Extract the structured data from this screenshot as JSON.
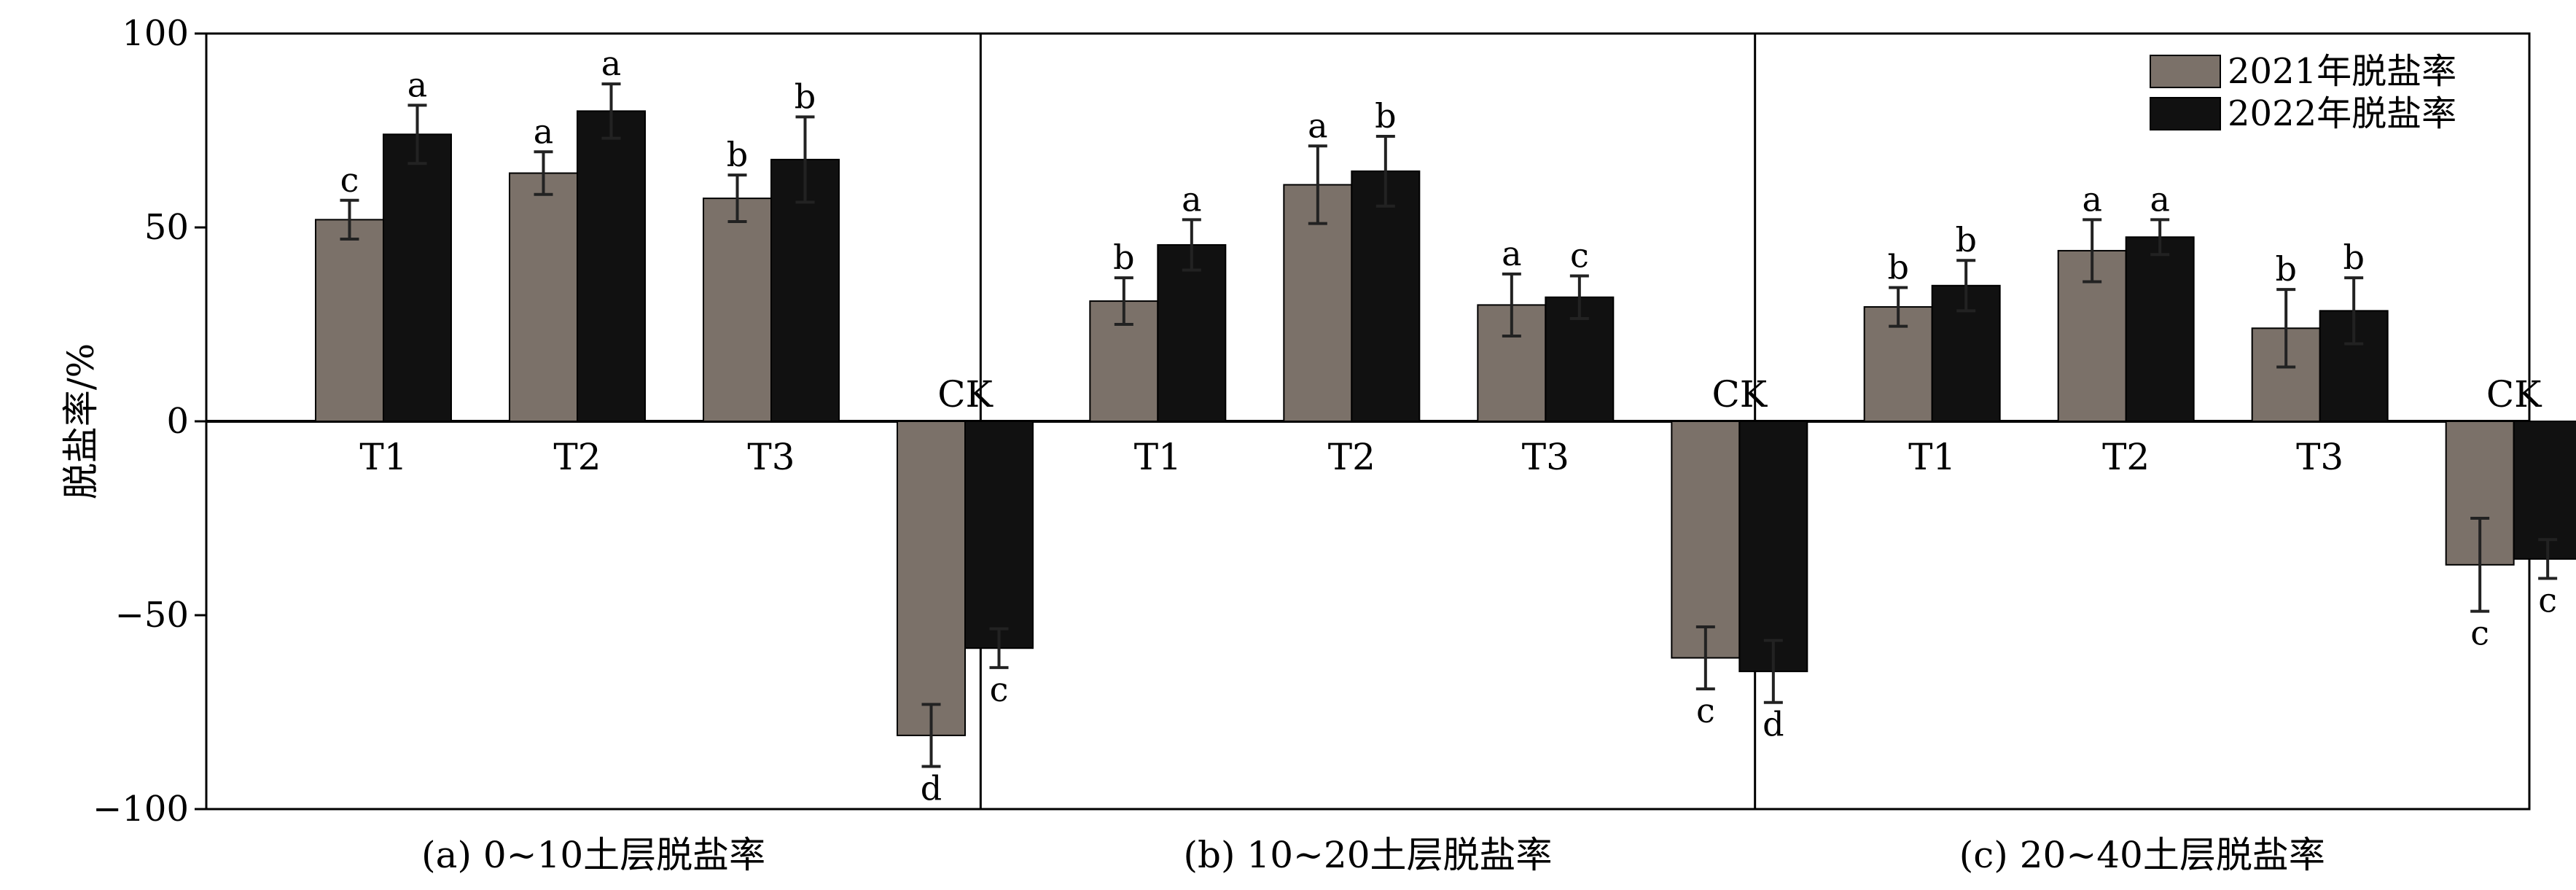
{
  "chart_data": {
    "type": "bar",
    "ylabel": "脱盐率/%",
    "ylim": [
      -100,
      100
    ],
    "yticks": [
      100,
      50,
      0,
      -50,
      -100
    ],
    "ytick_labels": [
      "100",
      "50",
      "0",
      "−50",
      "−100"
    ],
    "legend": {
      "position": "top-right",
      "entries": [
        {
          "name": "2021年脱盐率",
          "color": "#7b7169"
        },
        {
          "name": "2022年脱盐率",
          "color": "#111111"
        }
      ]
    },
    "panels": [
      {
        "title": "(a) 0~10土层脱盐率",
        "categories": [
          "T1",
          "T2",
          "T3",
          "CK"
        ],
        "series": [
          {
            "name": "2021年脱盐率",
            "values": [
              52,
              64,
              57.5,
              -81
            ],
            "errors": [
              5,
              5.5,
              6,
              8
            ],
            "labels": [
              "c",
              "a",
              "b",
              "d"
            ]
          },
          {
            "name": "2022年脱盐率",
            "values": [
              74,
              80,
              67.5,
              -58.5
            ],
            "errors": [
              7.5,
              7,
              11,
              5
            ],
            "labels": [
              "a",
              "a",
              "b",
              "c"
            ]
          }
        ]
      },
      {
        "title": "(b) 10~20土层脱盐率",
        "categories": [
          "T1",
          "T2",
          "T3",
          "CK"
        ],
        "series": [
          {
            "name": "2021年脱盐率",
            "values": [
              31,
              61,
              30,
              -61
            ],
            "errors": [
              6,
              10,
              8,
              8
            ],
            "labels": [
              "b",
              "a",
              "a",
              "c"
            ]
          },
          {
            "name": "2022年脱盐率",
            "values": [
              45.5,
              64.5,
              32,
              -64.5
            ],
            "errors": [
              6.5,
              9,
              5.5,
              8
            ],
            "labels": [
              "a",
              "b",
              "c",
              "d"
            ]
          }
        ]
      },
      {
        "title": "(c) 20~40土层脱盐率",
        "categories": [
          "T1",
          "T2",
          "T3",
          "CK"
        ],
        "series": [
          {
            "name": "2021年脱盐率",
            "values": [
              29.5,
              44,
              24,
              -37
            ],
            "errors": [
              5,
              8,
              10,
              12
            ],
            "labels": [
              "b",
              "a",
              "b",
              "c"
            ]
          },
          {
            "name": "2022年脱盐率",
            "values": [
              35,
              47.5,
              28.5,
              -35.5
            ],
            "errors": [
              6.5,
              4.5,
              8.5,
              5
            ],
            "labels": [
              "b",
              "a",
              "b",
              "c"
            ]
          }
        ]
      }
    ]
  }
}
